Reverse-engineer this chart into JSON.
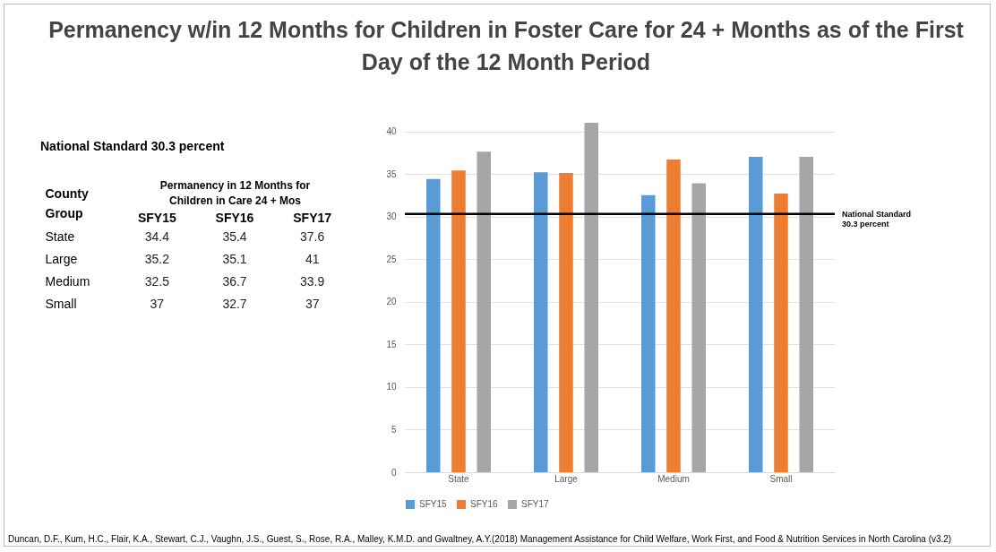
{
  "chart_data": [
    {
      "type": "heatmap",
      "title": "Permanency w/in 12 Months for Children in Foster Care for 24 + Months as of the First Day of the 12 Month Period",
      "xlabel": "Permanency in 12 Months for Children in Care 24 + Mos",
      "ylabel": "County Group",
      "categories": [
        "SFY15",
        "SFY16",
        "SFY17"
      ],
      "y_categories": [
        "State",
        "Large",
        "Medium",
        "Small"
      ],
      "cells": [
        [
          34.4,
          35.4,
          37.6
        ],
        [
          35.2,
          35.1,
          41
        ],
        [
          32.5,
          36.7,
          33.9
        ],
        [
          37,
          32.7,
          37
        ]
      ],
      "data_labels": true,
      "annotations": [
        "National Standard 30.3 percent"
      ]
    },
    {
      "type": "bar",
      "categories": [
        "State",
        "Large",
        "Medium",
        "Small"
      ],
      "series": [
        {
          "name": "SFY15",
          "color": "#5b9bd5",
          "values": [
            34.4,
            35.2,
            32.5,
            37
          ]
        },
        {
          "name": "SFY16",
          "color": "#ed7d31",
          "values": [
            35.4,
            35.1,
            36.7,
            32.7
          ]
        },
        {
          "name": "SFY17",
          "color": "#a5a5a5",
          "values": [
            37.6,
            41,
            33.9,
            37
          ]
        }
      ],
      "ylim": [
        0,
        41
      ],
      "yticks": [
        0,
        5,
        10,
        15,
        20,
        25,
        30,
        35,
        40
      ],
      "grid": "y",
      "legend": "bottom",
      "ref_lines": [
        {
          "axis": "y",
          "value": 30.3,
          "label": "National Standard 30.3 percent",
          "color": "#000000"
        }
      ],
      "annotations": [
        "Duncan, D.F., Kum, H.C., Flair, K.A., Stewart, C.J., Vaughn, J.S., Guest, S., Rose, R.A., Malley, K.M.D. and Gwaltney, A.Y.(2018) Management Assistance for Child Welfare, Work First, and Food & Nutrition Services in North Carolina (v3.2)"
      ]
    }
  ]
}
